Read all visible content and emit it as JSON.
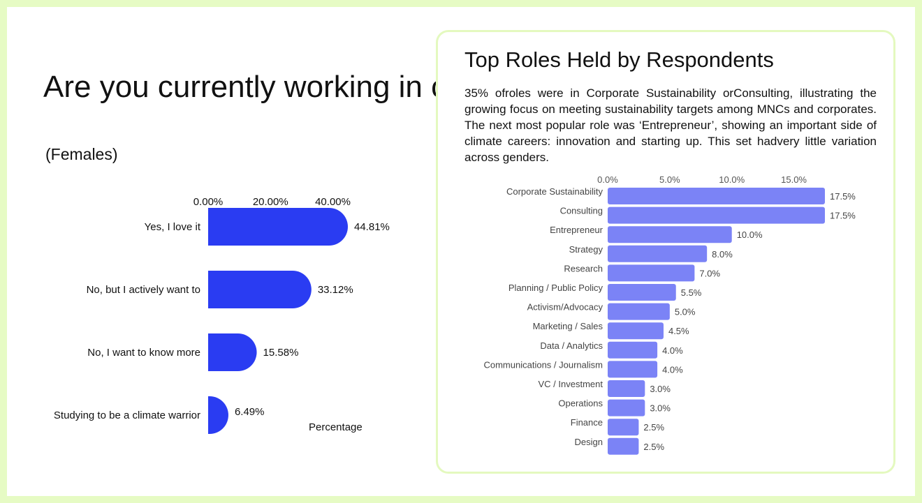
{
  "left": {
    "title": "Are you currently working in climate?",
    "subtitle": "(Females)"
  },
  "right": {
    "title": "Top Roles Held by Respondents",
    "description": "35% ofroles were in Corporate Sustainability orConsulting, illustrating the growing focus on meeting sustainability targets among MNCs and corporates. The next most popular role was ‘Entrepreneur’, showing an important side of climate careers: innovation and starting up. This set hadvery little variation across genders."
  },
  "colors": {
    "left_bar": "#2a3cf2",
    "right_bar": "#7b83f6",
    "page_bg": "#e6fbc4",
    "card_border": "#e4f9bf"
  },
  "chart_data": [
    {
      "type": "bar",
      "orientation": "horizontal",
      "categories": [
        "Yes, I love it",
        "No, but I actively want to",
        "No, I want to know more",
        "Studying to be a climate warrior"
      ],
      "values": [
        44.81,
        33.12,
        15.58,
        6.49
      ],
      "value_labels": [
        "44.81%",
        "33.12%",
        "15.58%",
        "6.49%"
      ],
      "x_ticks": [
        "0.00%",
        "20.00%",
        "40.00%"
      ],
      "xlabel": "Percentage",
      "xlim": [
        0,
        44.81
      ],
      "legend": "none",
      "grid": false
    },
    {
      "type": "bar",
      "orientation": "horizontal",
      "categories": [
        "Corporate Sustainability",
        "Consulting",
        "Entrepreneur",
        "Strategy",
        "Research",
        "Planning / Public Policy",
        "Activism/Advocacy",
        "Marketing / Sales",
        "Data / Analytics",
        "Communications / Journalism",
        "VC / Investment",
        "Operations",
        "Finance",
        "Design"
      ],
      "values": [
        17.5,
        17.5,
        10.0,
        8.0,
        7.0,
        5.5,
        5.0,
        4.5,
        4.0,
        4.0,
        3.0,
        3.0,
        2.5,
        2.5
      ],
      "value_labels": [
        "17.5%",
        "17.5%",
        "10.0%",
        "8.0%",
        "7.0%",
        "5.5%",
        "5.0%",
        "4.5%",
        "4.0%",
        "4.0%",
        "3.0%",
        "3.0%",
        "2.5%",
        "2.5%"
      ],
      "x_ticks": [
        "0.0%",
        "5.0%",
        "10.0%",
        "15.0%"
      ],
      "xlim": [
        0,
        17.5
      ],
      "legend": "none",
      "grid": false
    }
  ]
}
